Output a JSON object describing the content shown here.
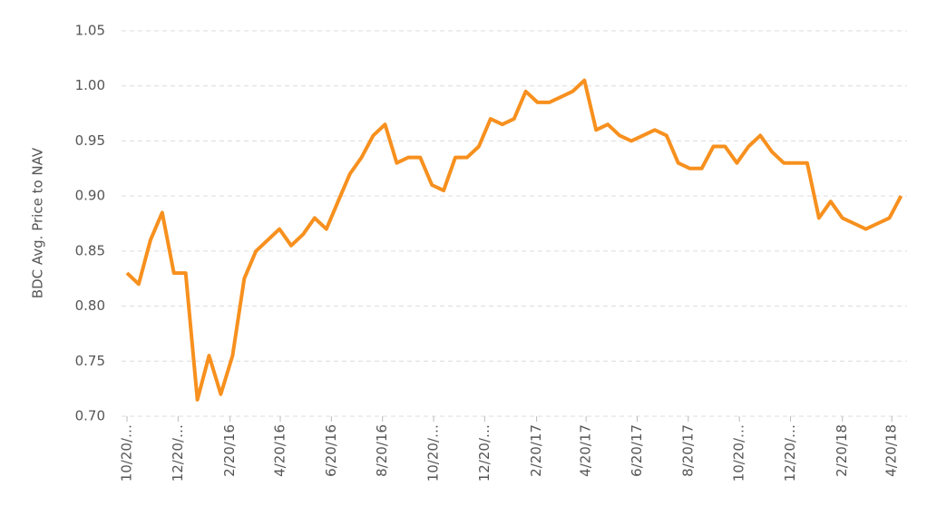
{
  "chart_data": {
    "type": "line",
    "y_label": "BDC Avg. Price to NAV",
    "x": [
      "10/20/15",
      "11/3/15",
      "11/17/15",
      "12/1/15",
      "12/15/15",
      "12/29/15",
      "1/12/16",
      "1/26/16",
      "2/9/16",
      "2/23/16",
      "3/8/16",
      "3/22/16",
      "4/5/16",
      "4/19/16",
      "5/3/16",
      "5/17/16",
      "5/31/16",
      "6/14/16",
      "6/28/16",
      "7/12/16",
      "7/26/16",
      "8/9/16",
      "8/23/16",
      "9/6/16",
      "9/20/16",
      "10/4/16",
      "10/18/16",
      "11/1/16",
      "11/15/16",
      "11/29/16",
      "12/13/16",
      "12/27/16",
      "1/10/17",
      "1/24/17",
      "2/7/17",
      "2/21/17",
      "3/7/17",
      "3/21/17",
      "4/4/17",
      "4/18/17",
      "5/2/17",
      "5/16/17",
      "5/30/17",
      "6/13/17",
      "6/27/17",
      "7/11/17",
      "7/25/17",
      "8/8/17",
      "8/22/17",
      "9/5/17",
      "9/19/17",
      "10/3/17",
      "10/17/17",
      "10/31/17",
      "11/14/17",
      "11/28/17",
      "12/12/17",
      "12/26/17",
      "1/9/18",
      "1/23/18",
      "2/6/18",
      "2/20/18",
      "3/6/18",
      "3/20/18",
      "4/3/18",
      "4/17/18",
      "5/1/18"
    ],
    "series": [
      {
        "name": "BDC Avg. Price to NAV",
        "color": "#f7901e",
        "values": [
          0.83,
          0.82,
          0.86,
          0.885,
          0.83,
          0.83,
          0.715,
          0.755,
          0.72,
          0.755,
          0.825,
          0.85,
          0.86,
          0.87,
          0.855,
          0.865,
          0.88,
          0.87,
          0.895,
          0.92,
          0.935,
          0.955,
          0.965,
          0.93,
          0.935,
          0.935,
          0.91,
          0.905,
          0.935,
          0.935,
          0.945,
          0.97,
          0.965,
          0.97,
          0.995,
          0.985,
          0.985,
          0.99,
          0.995,
          1.005,
          0.96,
          0.965,
          0.955,
          0.95,
          0.955,
          0.96,
          0.955,
          0.93,
          0.925,
          0.925,
          0.945,
          0.945,
          0.93,
          0.945,
          0.955,
          0.94,
          0.93,
          0.93,
          0.93,
          0.88,
          0.895,
          0.88,
          0.875,
          0.87,
          0.875,
          0.88,
          0.9
        ]
      }
    ],
    "xlim": [
      "10/20/15",
      "5/6/18"
    ],
    "xticks": [
      {
        "value": "10/20/15",
        "label": "10/20/…"
      },
      {
        "value": "12/20/15",
        "label": "12/20/…"
      },
      "2/20/16",
      "4/20/16",
      "6/20/16",
      "8/20/16",
      {
        "value": "10/20/16",
        "label": "10/20/…"
      },
      {
        "value": "12/20/16",
        "label": "12/20/…"
      },
      "2/20/17",
      "4/20/17",
      "6/20/17",
      "8/20/17",
      {
        "value": "10/20/17",
        "label": "10/20/…"
      },
      {
        "value": "12/20/17",
        "label": "12/20/…"
      },
      "2/20/18",
      "4/20/18"
    ],
    "ylim": [
      0.7,
      1.05
    ],
    "yticks": [
      {
        "value": 0.7,
        "label": "0.70"
      },
      0.75,
      {
        "value": 0.8,
        "label": "0.80"
      },
      0.85,
      {
        "value": 0.9,
        "label": "0.90"
      },
      0.95,
      {
        "value": 1.0,
        "label": "1.00"
      },
      1.05
    ],
    "grid": true
  }
}
